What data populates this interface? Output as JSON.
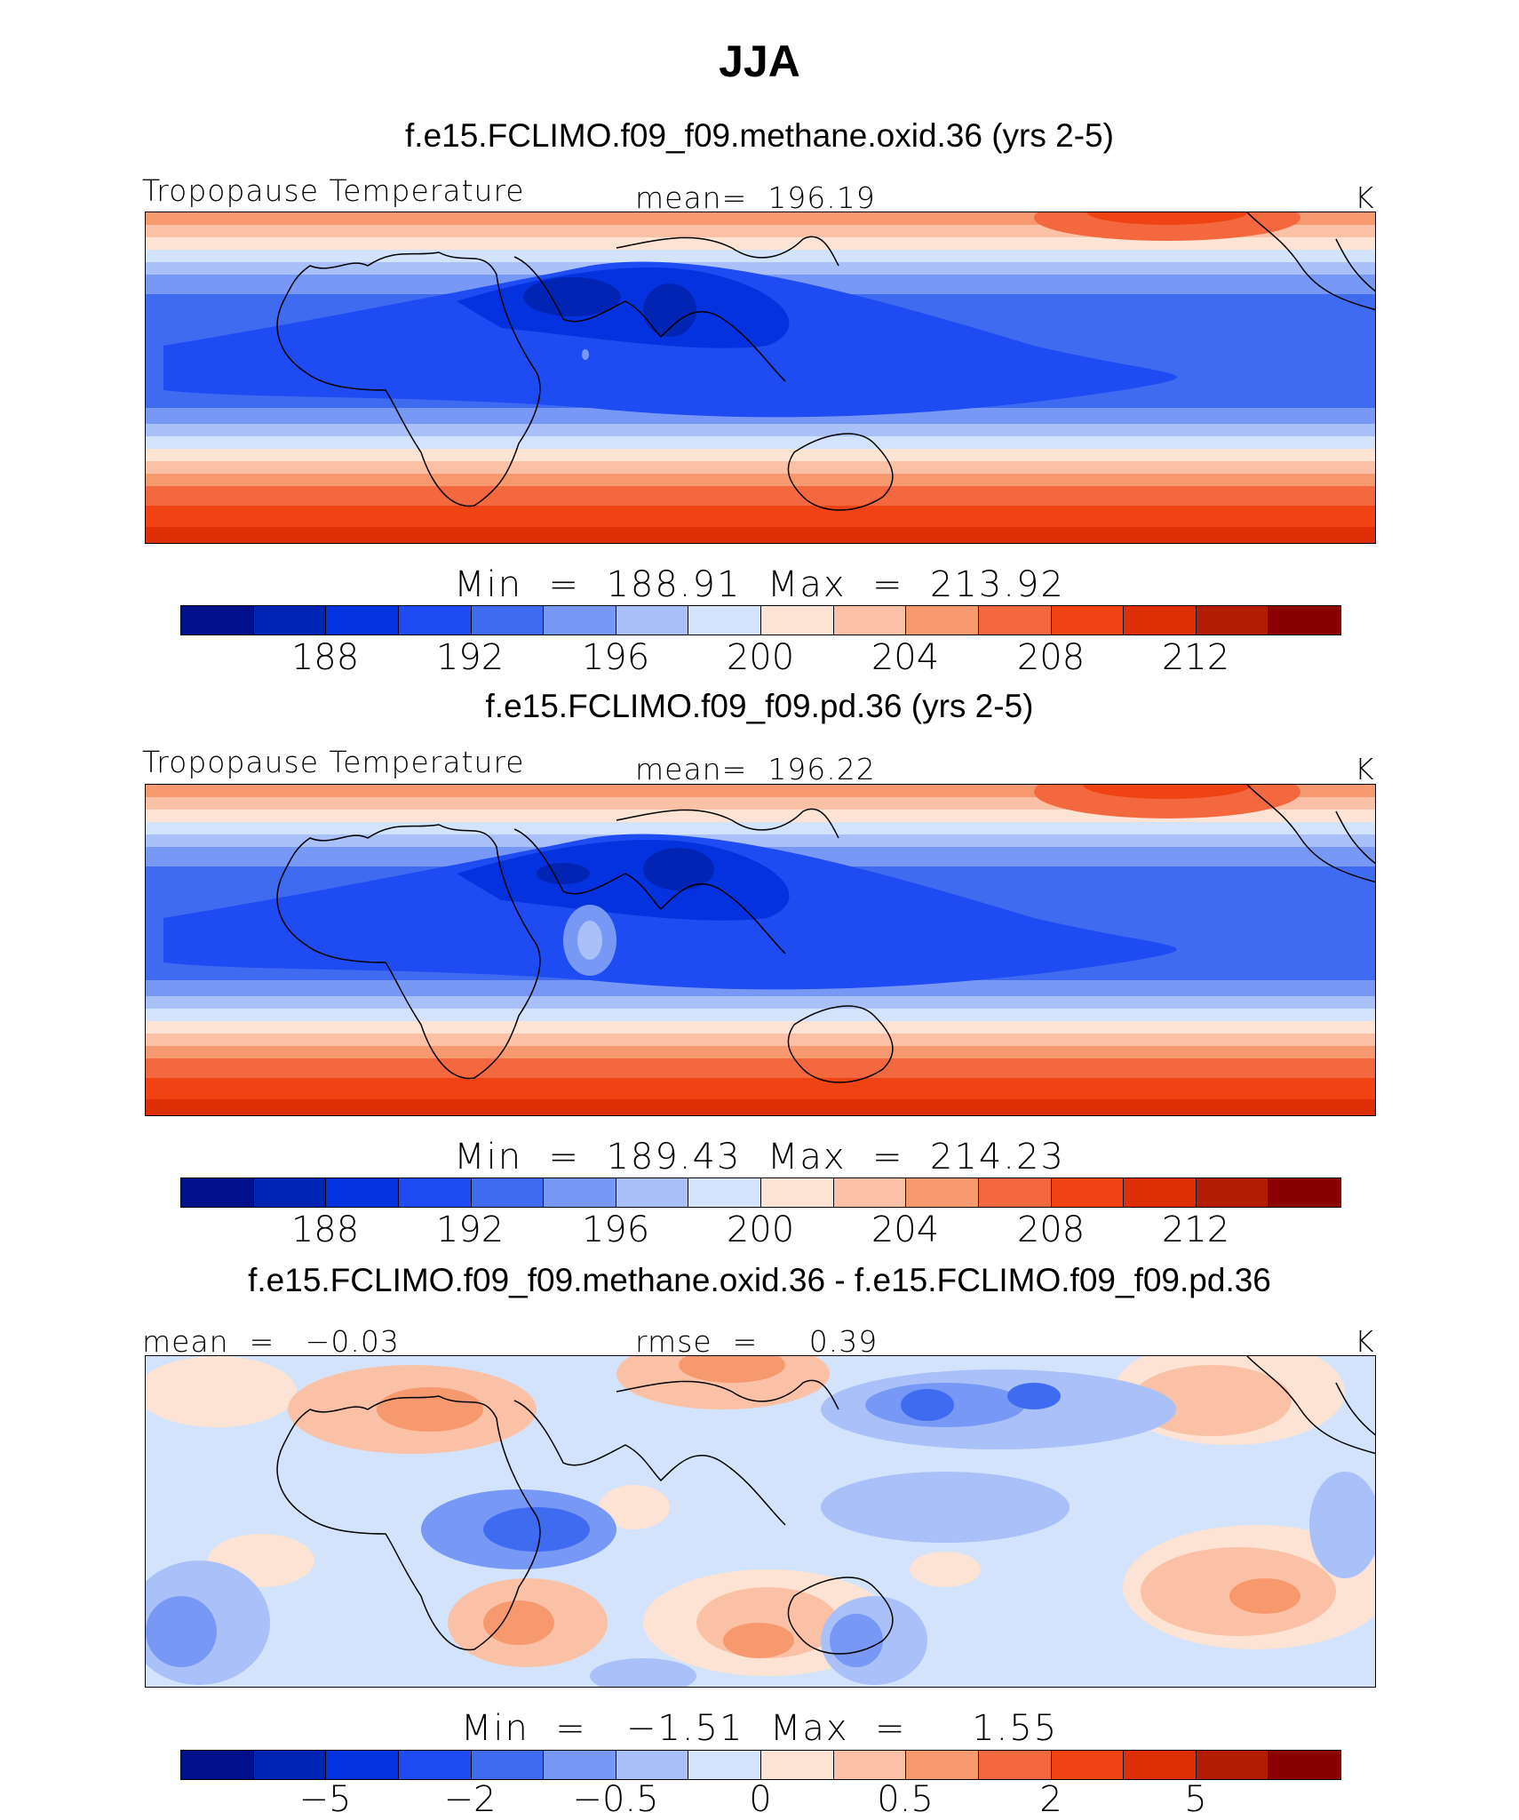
{
  "figure": {
    "title": "JJA"
  },
  "panels": [
    {
      "case_title": "f.e15.FCLIMO.f09_f09.methane.oxid.36 (yrs 2-5)",
      "left_label": "Tropopause Temperature",
      "center_label": "mean=  196.19",
      "units": "K",
      "stats": "Min  =  188.91  Max  =  213.92",
      "colorbar_labels": [
        "188",
        "192",
        "196",
        "200",
        "204",
        "208",
        "212"
      ],
      "map_name": "tropopause-temperature-map-methane-oxid"
    },
    {
      "case_title": "f.e15.FCLIMO.f09_f09.pd.36 (yrs 2-5)",
      "left_label": "Tropopause Temperature",
      "center_label": "mean=  196.22",
      "units": "K",
      "stats": "Min  =  189.43  Max  =  214.23",
      "colorbar_labels": [
        "188",
        "192",
        "196",
        "200",
        "204",
        "208",
        "212"
      ],
      "map_name": "tropopause-temperature-map-pd"
    },
    {
      "case_title": "f.e15.FCLIMO.f09_f09.methane.oxid.36 - f.e15.FCLIMO.f09_f09.pd.36",
      "left_label": "mean  =   −0.03",
      "center_label": "rmse  =     0.39",
      "units": "K",
      "stats": "Min  =   −1.51  Max  =     1.55",
      "colorbar_labels": [
        "−5",
        "−2",
        "−0.5",
        "0",
        "0.5",
        "2",
        "5"
      ],
      "map_name": "difference-map"
    }
  ],
  "colors": {
    "palette": [
      "#000f8a",
      "#0224b5",
      "#0432de",
      "#1e4cf2",
      "#3f6bf0",
      "#7798f5",
      "#a9c0f8",
      "#d3e3fb",
      "#fde3d3",
      "#fbc1a6",
      "#f7996f",
      "#f3683e",
      "#f04314",
      "#dc2f06",
      "#b21d02",
      "#8a0000"
    ]
  }
}
